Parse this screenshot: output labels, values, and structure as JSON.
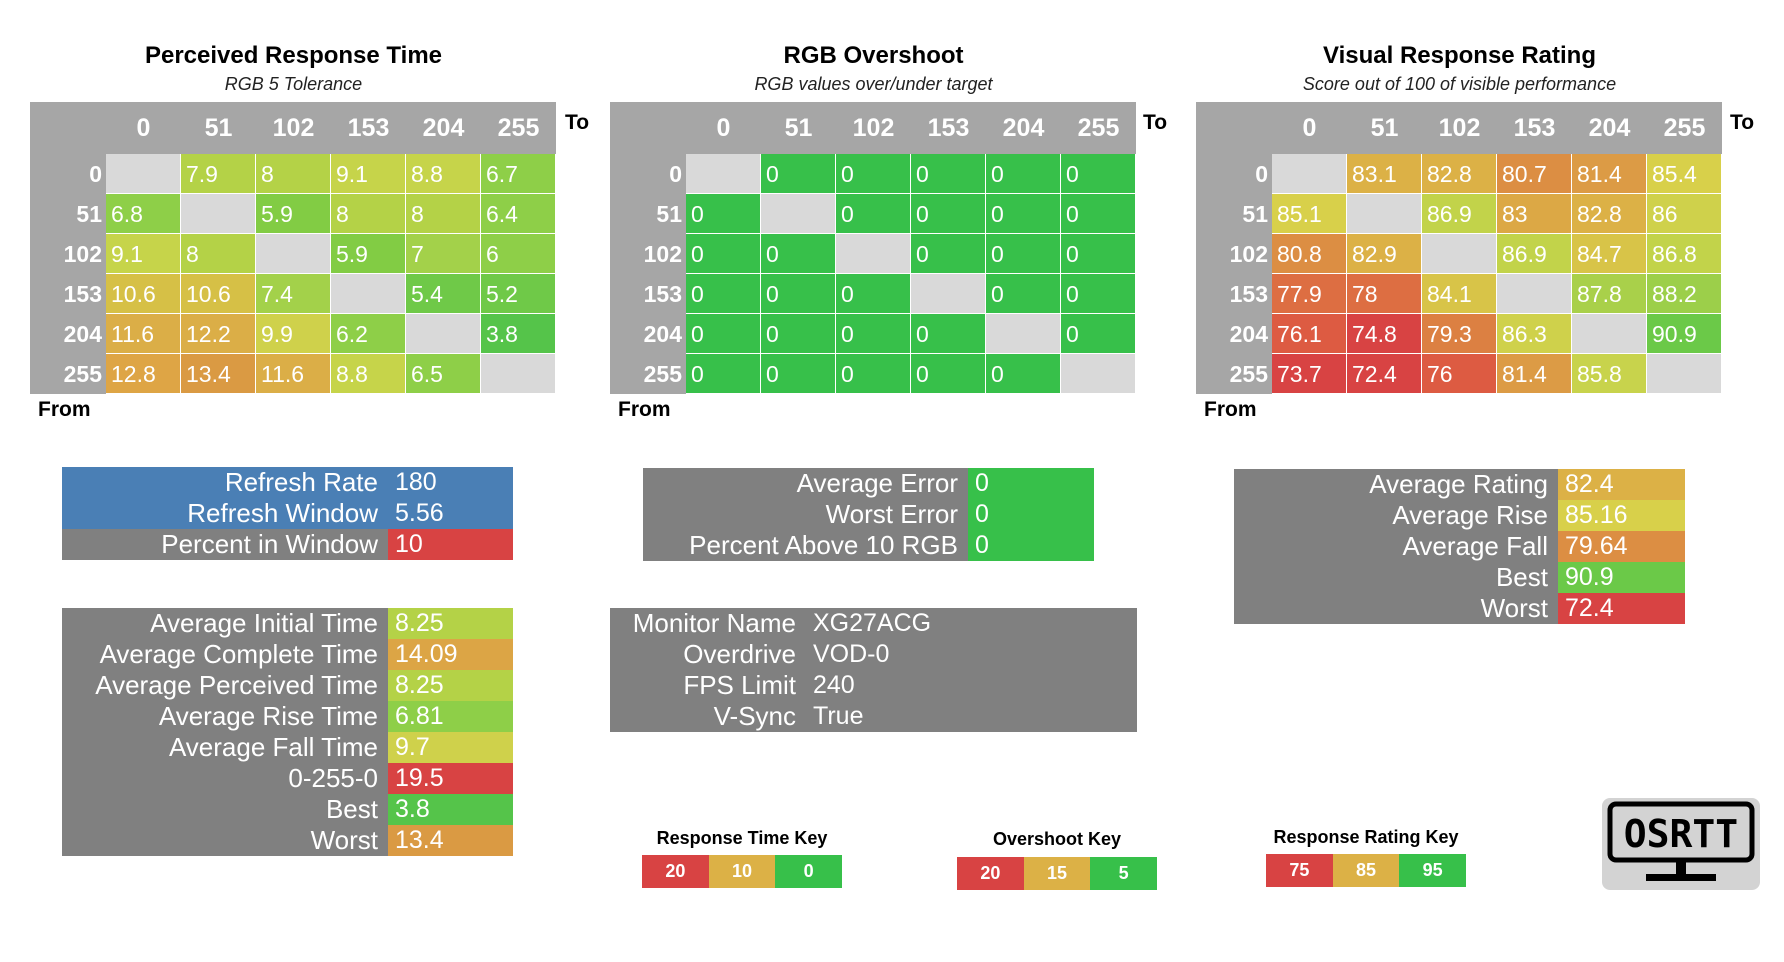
{
  "colors": {
    "grey": "#808080",
    "header": "#a6a6a6",
    "diag": "#d9d9d9",
    "blue": "#4a7fb5",
    "red": "#d84343",
    "green": "#37c04a"
  },
  "axes": {
    "to_label": "To",
    "from_label": "From"
  },
  "heatmaps": [
    {
      "title": "Perceived Response Time",
      "subtitle": "RGB 5 Tolerance",
      "headers": [
        "0",
        "51",
        "102",
        "153",
        "204",
        "255"
      ],
      "rows": [
        "0",
        "51",
        "102",
        "153",
        "204",
        "255"
      ],
      "values": [
        [
          "",
          "7.9",
          "8",
          "9.1",
          "8.8",
          "6.7"
        ],
        [
          "6.8",
          "",
          "5.9",
          "8",
          "8",
          "6.4"
        ],
        [
          "9.1",
          "8",
          "",
          "5.9",
          "7",
          "6"
        ],
        [
          "10.6",
          "10.6",
          "7.4",
          "",
          "5.4",
          "5.2"
        ],
        [
          "11.6",
          "12.2",
          "9.9",
          "6.2",
          "",
          "3.8"
        ],
        [
          "12.8",
          "13.4",
          "11.6",
          "8.8",
          "6.5",
          ""
        ]
      ],
      "colors": [
        [
          "",
          "#b4d247",
          "#b4d247",
          "#c6d44a",
          "#c6d44a",
          "#8ecf48"
        ],
        [
          "#8ecf48",
          "",
          "#82cc44",
          "#b4d247",
          "#b4d247",
          "#8ecf48"
        ],
        [
          "#c6d44a",
          "#b4d247",
          "",
          "#82cc44",
          "#a3d14a",
          "#8ecf48"
        ],
        [
          "#d6c046",
          "#d6c046",
          "#a3d14a",
          "",
          "#6fc948",
          "#6fc948"
        ],
        [
          "#dbae47",
          "#dbae47",
          "#cfd14b",
          "#8ecf48",
          "",
          "#55c44a"
        ],
        [
          "#dea545",
          "#da9a43",
          "#dbae47",
          "#c6d44a",
          "#8ecf48",
          ""
        ]
      ]
    },
    {
      "title": "RGB Overshoot",
      "subtitle": "RGB values over/under target",
      "headers": [
        "0",
        "51",
        "102",
        "153",
        "204",
        "255"
      ],
      "rows": [
        "0",
        "51",
        "102",
        "153",
        "204",
        "255"
      ],
      "values": [
        [
          "",
          "0",
          "0",
          "0",
          "0",
          "0"
        ],
        [
          "0",
          "",
          "0",
          "0",
          "0",
          "0"
        ],
        [
          "0",
          "0",
          "",
          "0",
          "0",
          "0"
        ],
        [
          "0",
          "0",
          "0",
          "",
          "0",
          "0"
        ],
        [
          "0",
          "0",
          "0",
          "0",
          "",
          "0"
        ],
        [
          "0",
          "0",
          "0",
          "0",
          "0",
          ""
        ]
      ],
      "colors": [
        [
          "",
          "#37c04a",
          "#37c04a",
          "#37c04a",
          "#37c04a",
          "#37c04a"
        ],
        [
          "#37c04a",
          "",
          "#37c04a",
          "#37c04a",
          "#37c04a",
          "#37c04a"
        ],
        [
          "#37c04a",
          "#37c04a",
          "",
          "#37c04a",
          "#37c04a",
          "#37c04a"
        ],
        [
          "#37c04a",
          "#37c04a",
          "#37c04a",
          "",
          "#37c04a",
          "#37c04a"
        ],
        [
          "#37c04a",
          "#37c04a",
          "#37c04a",
          "#37c04a",
          "",
          "#37c04a"
        ],
        [
          "#37c04a",
          "#37c04a",
          "#37c04a",
          "#37c04a",
          "#37c04a",
          ""
        ]
      ]
    },
    {
      "title": "Visual Response Rating",
      "subtitle": "Score out of 100 of visible performance",
      "headers": [
        "0",
        "51",
        "102",
        "153",
        "204",
        "255"
      ],
      "rows": [
        "0",
        "51",
        "102",
        "153",
        "204",
        "255"
      ],
      "values": [
        [
          "",
          "83.1",
          "82.8",
          "80.7",
          "81.4",
          "85.4"
        ],
        [
          "85.1",
          "",
          "86.9",
          "83",
          "82.8",
          "86"
        ],
        [
          "80.8",
          "82.9",
          "",
          "86.9",
          "84.7",
          "86.8"
        ],
        [
          "77.9",
          "78",
          "84.1",
          "",
          "87.8",
          "88.2"
        ],
        [
          "76.1",
          "74.8",
          "79.3",
          "86.3",
          "",
          "90.9"
        ],
        [
          "73.7",
          "72.4",
          "76",
          "81.4",
          "85.8",
          ""
        ]
      ],
      "colors": [
        [
          "",
          "#dcb146",
          "#dcb146",
          "#dc8e43",
          "#dc9b45",
          "#d8d04a"
        ],
        [
          "#d8d04a",
          "",
          "#c2d34a",
          "#dca845",
          "#dcb146",
          "#cfd14b"
        ],
        [
          "#dc8e43",
          "#dcb146",
          "",
          "#c2d34a",
          "#d8c448",
          "#c2d34a"
        ],
        [
          "#dd6e42",
          "#dd6e42",
          "#d8c448",
          "",
          "#a9d04a",
          "#9ccf4a"
        ],
        [
          "#dd5b42",
          "#d84343",
          "#dc8042",
          "#cfd14b",
          "",
          "#6bc948"
        ],
        [
          "#d84343",
          "#d84343",
          "#dd5b42",
          "#dc9b45",
          "#c8d34c",
          ""
        ]
      ]
    }
  ],
  "refresh_table": [
    {
      "label": "Refresh Rate",
      "value": "180",
      "label_color": "#4a7fb5",
      "value_color": "#4a7fb5"
    },
    {
      "label": "Refresh Window",
      "value": "5.56",
      "label_color": "#4a7fb5",
      "value_color": "#4a7fb5"
    },
    {
      "label": "Percent in Window",
      "value": "10",
      "label_color": "#808080",
      "value_color": "#d84343"
    }
  ],
  "time_table": [
    {
      "label": "Average Initial Time",
      "value": "8.25",
      "value_color": "#b4d247"
    },
    {
      "label": "Average Complete Time",
      "value": "14.09",
      "value_color": "#dca545"
    },
    {
      "label": "Average Perceived Time",
      "value": "8.25",
      "value_color": "#b4d247"
    },
    {
      "label": "Average Rise Time",
      "value": "6.81",
      "value_color": "#8ecf48"
    },
    {
      "label": "Average Fall Time",
      "value": "9.7",
      "value_color": "#cfd14b"
    },
    {
      "label": "0-255-0",
      "value": "19.5",
      "value_color": "#d84343"
    },
    {
      "label": "Best",
      "value": "3.8",
      "value_color": "#55c44a"
    },
    {
      "label": "Worst",
      "value": "13.4",
      "value_color": "#da9a43"
    }
  ],
  "error_table": [
    {
      "label": "Average Error",
      "value": "0",
      "value_color": "#37c04a"
    },
    {
      "label": "Worst Error",
      "value": "0",
      "value_color": "#37c04a"
    },
    {
      "label": "Percent Above 10 RGB",
      "value": "0",
      "value_color": "#37c04a"
    }
  ],
  "monitor_table": [
    {
      "label": "Monitor Name",
      "value": "XG27ACG"
    },
    {
      "label": "Overdrive",
      "value": "VOD-0"
    },
    {
      "label": "FPS Limit",
      "value": "240"
    },
    {
      "label": "V-Sync",
      "value": "True"
    }
  ],
  "rating_table": [
    {
      "label": "Average Rating",
      "value": "82.4",
      "value_color": "#dcb146"
    },
    {
      "label": "Average Rise",
      "value": "85.16",
      "value_color": "#d8d04a"
    },
    {
      "label": "Average Fall",
      "value": "79.64",
      "value_color": "#dc8e43"
    },
    {
      "label": "Best",
      "value": "90.9",
      "value_color": "#6bc948"
    },
    {
      "label": "Worst",
      "value": "72.4",
      "value_color": "#d84343"
    }
  ],
  "keys": [
    {
      "title": "Response Time Key",
      "values": [
        "20",
        "10",
        "0"
      ],
      "colors": [
        "#d84343",
        "#dcb146",
        "#37c04a"
      ]
    },
    {
      "title": "Overshoot Key",
      "values": [
        "20",
        "15",
        "5"
      ],
      "colors": [
        "#d84343",
        "#dcb146",
        "#37c04a"
      ]
    },
    {
      "title": "Response Rating Key",
      "values": [
        "75",
        "85",
        "95"
      ],
      "colors": [
        "#d84343",
        "#dcb146",
        "#37c04a"
      ]
    }
  ],
  "logo": {
    "text": "OSRTT"
  },
  "chart_data": [
    {
      "type": "heatmap",
      "title": "Perceived Response Time",
      "subtitle": "RGB 5 Tolerance",
      "xlabel": "To",
      "ylabel": "From",
      "x": [
        0,
        51,
        102,
        153,
        204,
        255
      ],
      "y": [
        0,
        51,
        102,
        153,
        204,
        255
      ],
      "values": [
        [
          null,
          7.9,
          8,
          9.1,
          8.8,
          6.7
        ],
        [
          6.8,
          null,
          5.9,
          8,
          8,
          6.4
        ],
        [
          9.1,
          8,
          null,
          5.9,
          7,
          6
        ],
        [
          10.6,
          10.6,
          7.4,
          null,
          5.4,
          5.2
        ],
        [
          11.6,
          12.2,
          9.9,
          6.2,
          null,
          3.8
        ],
        [
          12.8,
          13.4,
          11.6,
          8.8,
          6.5,
          null
        ]
      ]
    },
    {
      "type": "heatmap",
      "title": "RGB Overshoot",
      "subtitle": "RGB values over/under target",
      "xlabel": "To",
      "ylabel": "From",
      "x": [
        0,
        51,
        102,
        153,
        204,
        255
      ],
      "y": [
        0,
        51,
        102,
        153,
        204,
        255
      ],
      "values": [
        [
          null,
          0,
          0,
          0,
          0,
          0
        ],
        [
          0,
          null,
          0,
          0,
          0,
          0
        ],
        [
          0,
          0,
          null,
          0,
          0,
          0
        ],
        [
          0,
          0,
          0,
          null,
          0,
          0
        ],
        [
          0,
          0,
          0,
          0,
          null,
          0
        ],
        [
          0,
          0,
          0,
          0,
          0,
          null
        ]
      ]
    },
    {
      "type": "heatmap",
      "title": "Visual Response Rating",
      "subtitle": "Score out of 100 of visible performance",
      "xlabel": "To",
      "ylabel": "From",
      "x": [
        0,
        51,
        102,
        153,
        204,
        255
      ],
      "y": [
        0,
        51,
        102,
        153,
        204,
        255
      ],
      "values": [
        [
          null,
          83.1,
          82.8,
          80.7,
          81.4,
          85.4
        ],
        [
          85.1,
          null,
          86.9,
          83,
          82.8,
          86
        ],
        [
          80.8,
          82.9,
          null,
          86.9,
          84.7,
          86.8
        ],
        [
          77.9,
          78,
          84.1,
          null,
          87.8,
          88.2
        ],
        [
          76.1,
          74.8,
          79.3,
          86.3,
          null,
          90.9
        ],
        [
          73.7,
          72.4,
          76,
          81.4,
          85.8,
          null
        ]
      ]
    }
  ]
}
